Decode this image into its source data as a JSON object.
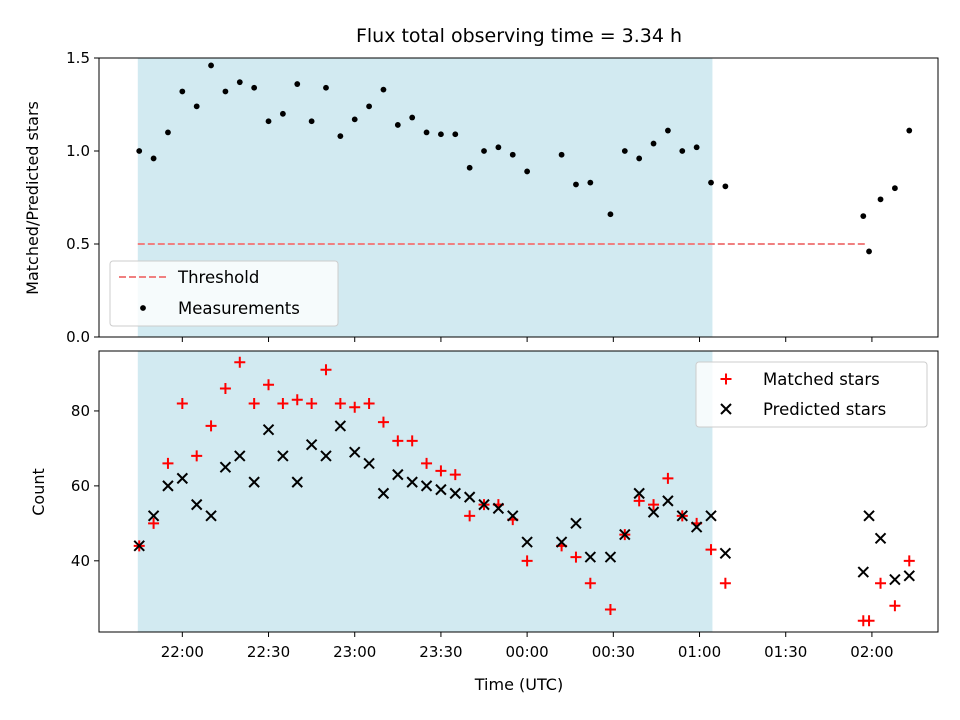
{
  "chart_data": {
    "type": "scatter",
    "title": "Flux total observing time = 3.34 h",
    "xlabel": "Time (UTC)",
    "x_unit": "minutes since 21:00 UTC (first tick day)",
    "xticks": [
      {
        "value": 60,
        "label": "22:00"
      },
      {
        "value": 90,
        "label": "22:30"
      },
      {
        "value": 120,
        "label": "23:00"
      },
      {
        "value": 150,
        "label": "23:30"
      },
      {
        "value": 180,
        "label": "00:00"
      },
      {
        "value": 210,
        "label": "00:30"
      },
      {
        "value": 240,
        "label": "01:00"
      },
      {
        "value": 270,
        "label": "01:30"
      },
      {
        "value": 300,
        "label": "02:00"
      }
    ],
    "xlim": [
      31,
      323
    ],
    "shaded_interval": {
      "x": [
        44.5,
        244.5
      ],
      "color": "#add8e6"
    },
    "panels": [
      {
        "id": "ratio",
        "ylabel": "Matched/Predicted stars",
        "ylim": [
          0,
          1.5
        ],
        "yticks": [
          {
            "value": 0,
            "label": "0.0"
          },
          {
            "value": 0.5,
            "label": "0.5"
          },
          {
            "value": 1.0,
            "label": "1.0"
          },
          {
            "value": 1.5,
            "label": "1.5"
          }
        ],
        "threshold": {
          "name": "Threshold",
          "value": 0.5,
          "x": [
            44.5,
            298.5
          ],
          "color": "#f08080"
        },
        "series": [
          {
            "name": "Measurements",
            "marker": "dot",
            "color": "#000000",
            "points": [
              [
                45,
                1.0
              ],
              [
                50,
                0.96
              ],
              [
                55,
                1.1
              ],
              [
                60,
                1.32
              ],
              [
                65,
                1.24
              ],
              [
                70,
                1.46
              ],
              [
                75,
                1.32
              ],
              [
                80,
                1.37
              ],
              [
                85,
                1.34
              ],
              [
                90,
                1.16
              ],
              [
                95,
                1.2
              ],
              [
                100,
                1.36
              ],
              [
                105,
                1.16
              ],
              [
                110,
                1.34
              ],
              [
                115,
                1.08
              ],
              [
                120,
                1.17
              ],
              [
                125,
                1.24
              ],
              [
                130,
                1.33
              ],
              [
                135,
                1.14
              ],
              [
                140,
                1.18
              ],
              [
                145,
                1.1
              ],
              [
                150,
                1.09
              ],
              [
                155,
                1.09
              ],
              [
                160,
                0.91
              ],
              [
                165,
                1.0
              ],
              [
                170,
                1.02
              ],
              [
                175,
                0.98
              ],
              [
                180,
                0.89
              ],
              [
                192,
                0.98
              ],
              [
                197,
                0.82
              ],
              [
                202,
                0.83
              ],
              [
                209,
                0.66
              ],
              [
                214,
                1.0
              ],
              [
                219,
                0.96
              ],
              [
                224,
                1.04
              ],
              [
                229,
                1.11
              ],
              [
                234,
                1.0
              ],
              [
                239,
                1.02
              ],
              [
                244,
                0.83
              ],
              [
                249,
                0.81
              ],
              [
                297,
                0.65
              ],
              [
                299,
                0.46
              ],
              [
                303,
                0.74
              ],
              [
                308,
                0.8
              ],
              [
                313,
                1.11
              ]
            ]
          }
        ],
        "legend": {
          "placement": "lower-left",
          "entries": [
            "Threshold",
            "Measurements"
          ]
        }
      },
      {
        "id": "count",
        "ylabel": "Count",
        "ylim": [
          21,
          96
        ],
        "yticks": [
          {
            "value": 40,
            "label": "40"
          },
          {
            "value": 60,
            "label": "60"
          },
          {
            "value": 80,
            "label": "80"
          }
        ],
        "series": [
          {
            "name": "Matched stars",
            "marker": "plus",
            "color": "#ff0000",
            "points": [
              [
                45,
                44
              ],
              [
                50,
                50
              ],
              [
                55,
                66
              ],
              [
                60,
                82
              ],
              [
                65,
                68
              ],
              [
                70,
                76
              ],
              [
                75,
                86
              ],
              [
                80,
                93
              ],
              [
                85,
                82
              ],
              [
                90,
                87
              ],
              [
                95,
                82
              ],
              [
                100,
                83
              ],
              [
                105,
                82
              ],
              [
                110,
                91
              ],
              [
                115,
                82
              ],
              [
                120,
                81
              ],
              [
                125,
                82
              ],
              [
                130,
                77
              ],
              [
                135,
                72
              ],
              [
                140,
                72
              ],
              [
                145,
                66
              ],
              [
                150,
                64
              ],
              [
                155,
                63
              ],
              [
                160,
                52
              ],
              [
                165,
                55
              ],
              [
                170,
                55
              ],
              [
                175,
                51
              ],
              [
                180,
                40
              ],
              [
                192,
                44
              ],
              [
                197,
                41
              ],
              [
                202,
                34
              ],
              [
                209,
                27
              ],
              [
                214,
                47
              ],
              [
                219,
                56
              ],
              [
                224,
                55
              ],
              [
                229,
                62
              ],
              [
                234,
                52
              ],
              [
                239,
                50
              ],
              [
                244,
                43
              ],
              [
                249,
                34
              ],
              [
                297,
                24
              ],
              [
                299,
                24
              ],
              [
                303,
                34
              ],
              [
                308,
                28
              ],
              [
                313,
                40
              ]
            ]
          },
          {
            "name": "Predicted stars",
            "marker": "x",
            "color": "#000000",
            "points": [
              [
                45,
                44
              ],
              [
                50,
                52
              ],
              [
                55,
                60
              ],
              [
                60,
                62
              ],
              [
                65,
                55
              ],
              [
                70,
                52
              ],
              [
                75,
                65
              ],
              [
                80,
                68
              ],
              [
                85,
                61
              ],
              [
                90,
                75
              ],
              [
                95,
                68
              ],
              [
                100,
                61
              ],
              [
                105,
                71
              ],
              [
                110,
                68
              ],
              [
                115,
                76
              ],
              [
                120,
                69
              ],
              [
                125,
                66
              ],
              [
                130,
                58
              ],
              [
                135,
                63
              ],
              [
                140,
                61
              ],
              [
                145,
                60
              ],
              [
                150,
                59
              ],
              [
                155,
                58
              ],
              [
                160,
                57
              ],
              [
                165,
                55
              ],
              [
                170,
                54
              ],
              [
                175,
                52
              ],
              [
                180,
                45
              ],
              [
                192,
                45
              ],
              [
                197,
                50
              ],
              [
                202,
                41
              ],
              [
                209,
                41
              ],
              [
                214,
                47
              ],
              [
                219,
                58
              ],
              [
                224,
                53
              ],
              [
                229,
                56
              ],
              [
                234,
                52
              ],
              [
                239,
                49
              ],
              [
                244,
                52
              ],
              [
                249,
                42
              ],
              [
                297,
                37
              ],
              [
                299,
                52
              ],
              [
                303,
                46
              ],
              [
                308,
                35
              ],
              [
                313,
                36
              ]
            ]
          }
        ],
        "legend": {
          "placement": "upper-right",
          "entries": [
            "Matched stars",
            "Predicted stars"
          ]
        }
      }
    ]
  }
}
